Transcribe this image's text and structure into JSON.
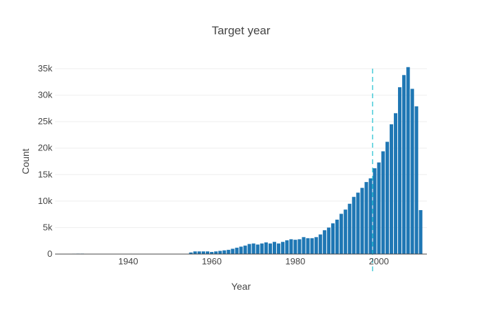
{
  "chart_data": {
    "type": "bar",
    "title": "Target year",
    "xlabel": "Year",
    "ylabel": "Count",
    "xlim": [
      1922.5,
      2011.5
    ],
    "ylim": [
      0,
      37600
    ],
    "x_ticks": [
      {
        "value": 1940,
        "label": "1940"
      },
      {
        "value": 1960,
        "label": "1960"
      },
      {
        "value": 1980,
        "label": "1980"
      },
      {
        "value": 2000,
        "label": "2000"
      }
    ],
    "y_ticks": [
      {
        "value": 0,
        "label": "0"
      },
      {
        "value": 5000,
        "label": "5k"
      },
      {
        "value": 10000,
        "label": "10k"
      },
      {
        "value": 15000,
        "label": "15k"
      },
      {
        "value": 20000,
        "label": "20k"
      },
      {
        "value": 25000,
        "label": "25k"
      },
      {
        "value": 30000,
        "label": "30k"
      },
      {
        "value": 35000,
        "label": "35k"
      }
    ],
    "grid": true,
    "bar_color": "#1f77b4",
    "reference_line": {
      "x": 1998.5,
      "color": "#17becf",
      "style": "dashed"
    },
    "x": [
      1926,
      1927,
      1928,
      1929,
      1930,
      1931,
      1932,
      1933,
      1934,
      1935,
      1936,
      1937,
      1938,
      1939,
      1940,
      1941,
      1942,
      1943,
      1944,
      1945,
      1946,
      1947,
      1948,
      1949,
      1950,
      1951,
      1952,
      1953,
      1954,
      1955,
      1956,
      1957,
      1958,
      1959,
      1960,
      1961,
      1962,
      1963,
      1964,
      1965,
      1966,
      1967,
      1968,
      1969,
      1970,
      1971,
      1972,
      1973,
      1974,
      1975,
      1976,
      1977,
      1978,
      1979,
      1980,
      1981,
      1982,
      1983,
      1984,
      1985,
      1986,
      1987,
      1988,
      1989,
      1990,
      1991,
      1992,
      1993,
      1994,
      1995,
      1996,
      1997,
      1998,
      1999,
      2000,
      2001,
      2002,
      2003,
      2004,
      2005,
      2006,
      2007,
      2008,
      2009,
      2010
    ],
    "values": [
      60,
      70,
      80,
      80,
      60,
      60,
      60,
      60,
      60,
      60,
      60,
      60,
      60,
      60,
      60,
      60,
      60,
      60,
      60,
      60,
      60,
      60,
      60,
      60,
      60,
      60,
      60,
      60,
      60,
      300,
      500,
      500,
      500,
      500,
      400,
      500,
      600,
      700,
      800,
      1000,
      1200,
      1400,
      1600,
      1900,
      2000,
      1800,
      2000,
      2200,
      2000,
      2300,
      2000,
      2300,
      2600,
      2800,
      2700,
      2800,
      3200,
      3000,
      3000,
      3200,
      3700,
      4500,
      5000,
      5800,
      6500,
      7600,
      8400,
      9500,
      10800,
      11600,
      12500,
      13600,
      14300,
      16200,
      17300,
      19400,
      21200,
      24500,
      26600,
      31500,
      33800,
      35300,
      31200,
      27900,
      8300
    ]
  }
}
